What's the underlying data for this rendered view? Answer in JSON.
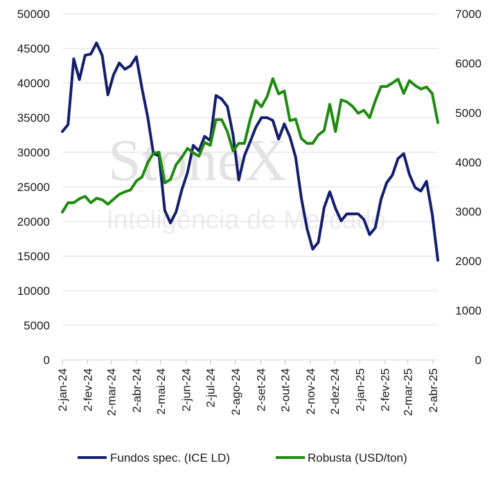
{
  "watermark": {
    "brand": "StoneX",
    "tagline": "Inteligência de Mercado"
  },
  "chart_data": {
    "type": "line",
    "x": [
      "2024-01-02",
      "2024-01-09",
      "2024-01-16",
      "2024-01-23",
      "2024-01-30",
      "2024-02-06",
      "2024-02-13",
      "2024-02-20",
      "2024-02-27",
      "2024-03-05",
      "2024-03-12",
      "2024-03-19",
      "2024-03-26",
      "2024-04-02",
      "2024-04-09",
      "2024-04-16",
      "2024-04-23",
      "2024-04-30",
      "2024-05-07",
      "2024-05-14",
      "2024-05-21",
      "2024-05-28",
      "2024-06-04",
      "2024-06-11",
      "2024-06-18",
      "2024-06-25",
      "2024-07-02",
      "2024-07-09",
      "2024-07-16",
      "2024-07-23",
      "2024-07-30",
      "2024-08-06",
      "2024-08-13",
      "2024-08-20",
      "2024-08-27",
      "2024-09-03",
      "2024-09-10",
      "2024-09-17",
      "2024-09-24",
      "2024-10-01",
      "2024-10-08",
      "2024-10-15",
      "2024-10-22",
      "2024-10-29",
      "2024-11-05",
      "2024-11-12",
      "2024-11-19",
      "2024-11-26",
      "2024-12-03",
      "2024-12-10",
      "2024-12-17",
      "2024-12-24",
      "2024-12-31",
      "2025-01-07",
      "2025-01-14",
      "2025-01-21",
      "2025-01-28",
      "2025-02-04",
      "2025-02-11",
      "2025-02-18",
      "2025-02-25",
      "2025-03-04",
      "2025-03-11",
      "2025-03-18",
      "2025-03-25",
      "2025-04-01",
      "2025-04-08"
    ],
    "x_ticks": [
      "2-jan-24",
      "2-fev-24",
      "2-mar-24",
      "2-abr-24",
      "2-mai-24",
      "2-jun-24",
      "2-jul-24",
      "2-ago-24",
      "2-set-24",
      "2-out-24",
      "2-nov-24",
      "2-dez-24",
      "2-jan-25",
      "2-fev-25",
      "2-mar-25",
      "2-abr-25"
    ],
    "y_left": {
      "ticks": [
        "0",
        "5000",
        "10000",
        "15000",
        "20000",
        "25000",
        "30000",
        "35000",
        "40000",
        "45000",
        "50000"
      ],
      "ylim": [
        0,
        50000
      ]
    },
    "y_right": {
      "ticks": [
        "0",
        "1000",
        "2000",
        "3000",
        "4000",
        "5000",
        "6000",
        "7000"
      ],
      "ylim": [
        0,
        7000
      ]
    },
    "legend_position": "bottom",
    "series": [
      {
        "name": "Fundos spec. (ICE LD)",
        "axis": "left",
        "color": "#141e6e",
        "values": [
          33000,
          34000,
          43500,
          40500,
          44000,
          44200,
          45800,
          44000,
          38300,
          41200,
          42900,
          42000,
          42500,
          43800,
          39200,
          35100,
          29800,
          29500,
          21600,
          19800,
          21400,
          24600,
          27100,
          31000,
          30200,
          32300,
          31700,
          38200,
          37700,
          36600,
          32500,
          26000,
          29500,
          31500,
          33600,
          35000,
          35000,
          34600,
          31900,
          34100,
          32200,
          29300,
          23400,
          19000,
          16000,
          17000,
          22000,
          24300,
          21900,
          20100,
          21100,
          21100,
          21100,
          20300,
          18100,
          19100,
          23200,
          25600,
          26700,
          29100,
          29800,
          26800,
          24900,
          24400,
          25800,
          21100,
          14400
        ]
      },
      {
        "name": "Robusta (USD/ton)",
        "axis": "right",
        "color": "#1f8a10",
        "values": [
          2990,
          3180,
          3180,
          3260,
          3310,
          3180,
          3270,
          3240,
          3150,
          3250,
          3350,
          3400,
          3440,
          3620,
          3700,
          3990,
          4180,
          4200,
          3580,
          3650,
          3950,
          4100,
          4280,
          4190,
          4120,
          4400,
          4340,
          4860,
          4860,
          4620,
          4230,
          4380,
          4380,
          4860,
          5250,
          5120,
          5330,
          5690,
          5380,
          5440,
          4840,
          4870,
          4480,
          4380,
          4380,
          4550,
          4640,
          5170,
          4620,
          5260,
          5220,
          5130,
          4990,
          5050,
          4900,
          5240,
          5530,
          5530,
          5600,
          5680,
          5390,
          5650,
          5550,
          5480,
          5520,
          5390,
          4800
        ]
      }
    ]
  }
}
